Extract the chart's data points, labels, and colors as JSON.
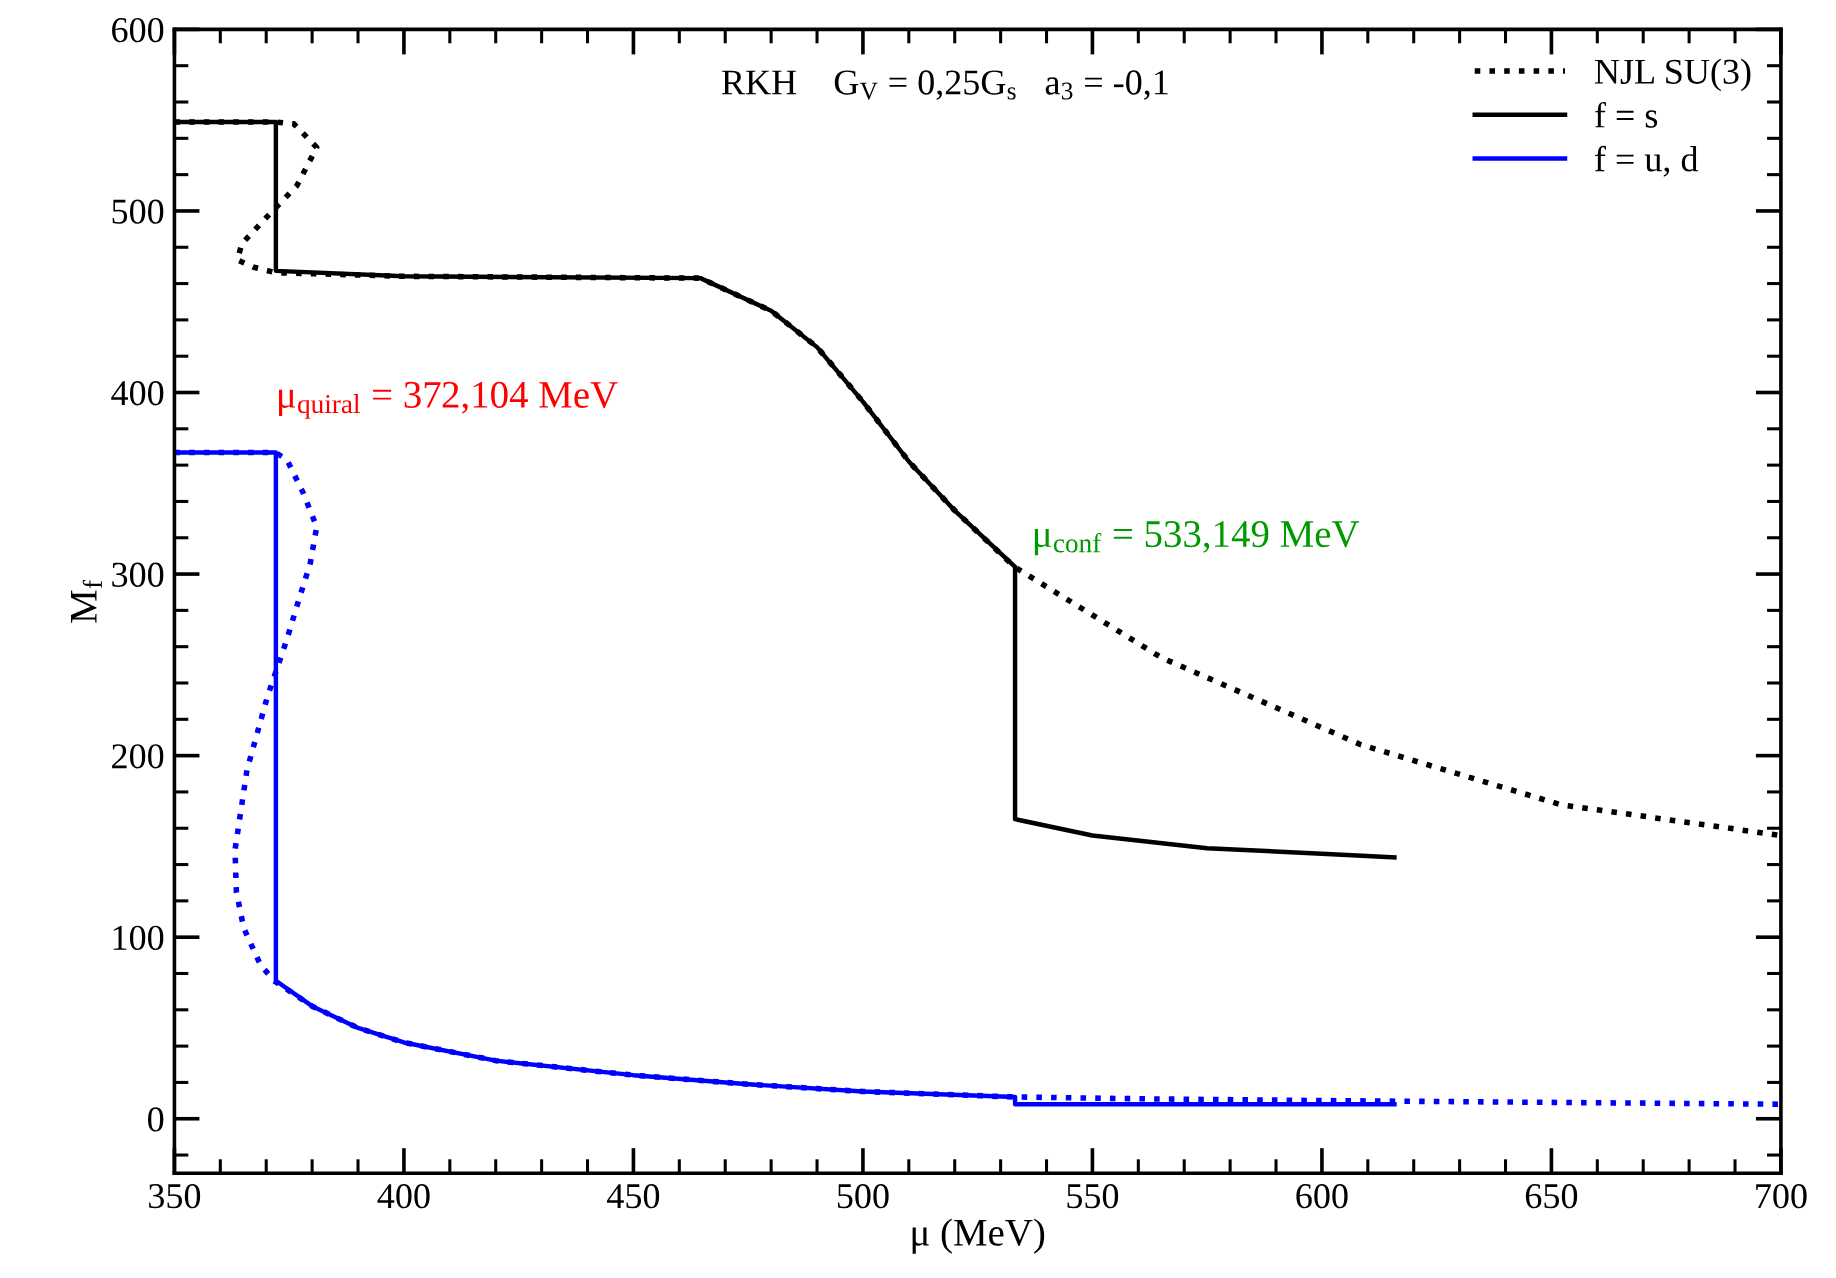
{
  "chart_data": {
    "type": "line",
    "title": "RKH    G$_{V}$ = 0,25G$_{s}$   a$_{3}$ = -0,1",
    "xlabel": "μ (MeV)",
    "ylabel": "M$_{f}$",
    "xlim": [
      350,
      700
    ],
    "ylim": [
      -30,
      600
    ],
    "xticks": [
      350,
      400,
      450,
      500,
      550,
      600,
      650,
      700
    ],
    "yticks": [
      0,
      100,
      200,
      300,
      400,
      500,
      600
    ],
    "grid": false,
    "legend": "top right",
    "marker": "none",
    "annotations": [
      {
        "text": "μ$_{quiral}$ = 372,104 MeV",
        "x": 372.104,
        "y": 367
      },
      {
        "text": "μ$_{conf}$ = 533,149 MeV",
        "x": 533.149,
        "y": 304
      }
    ],
    "series": [
      {
        "color": "#0000ff",
        "line_style": "dotted",
        "x": [
          350,
          372,
          374.5,
          378,
          381,
          379.6,
          377,
          374.5,
          370.2,
          365.8,
          363.2,
          363.5,
          365.1,
          368.7,
          371.7,
          380,
          390,
          400,
          420,
          450,
          475,
          500,
          533,
          560,
          600,
          650,
          700
        ],
        "values": [
          367,
          367,
          363,
          345,
          326,
          306,
          285,
          264,
          232,
          192,
          148,
          125,
          105,
          85,
          76,
          62,
          50,
          42,
          32,
          24,
          19,
          15,
          12,
          11,
          10,
          9,
          8
        ]
      },
      {
        "name": "NJL SU(3)",
        "color": "#000000",
        "line_style": "dotted",
        "x": [
          350,
          372,
          376,
          381,
          376.7,
          371,
          364.7,
          363.7,
          367.3,
          372,
          400,
          464.6,
          480,
          490,
          500,
          510,
          520,
          533,
          565,
          608.5,
          652,
          700
        ],
        "values": [
          549,
          549,
          548,
          535,
          514,
          499,
          482,
          473,
          469,
          466,
          464,
          463,
          445,
          425,
          395,
          362,
          335,
          304,
          254,
          206,
          173,
          156
        ]
      },
      {
        "name": "f = s",
        "color": "#000000",
        "line_style": "solid",
        "x": [
          350,
          372.104,
          372.104,
          400,
          464.6,
          480,
          490,
          500,
          510,
          520,
          533.149,
          533.149,
          550,
          575,
          600,
          615.8
        ],
        "values": [
          549,
          549,
          467,
          464,
          463,
          445,
          425,
          395,
          362,
          335,
          304,
          165,
          156,
          149,
          146,
          144
        ]
      },
      {
        "name": "f = u, d",
        "color": "#0000ff",
        "line_style": "solid",
        "x": [
          350,
          372.104,
          372.104,
          380,
          390,
          400,
          420,
          450,
          475,
          500,
          533.149,
          533.149,
          615.8
        ],
        "values": [
          367,
          367,
          76,
          62,
          50,
          42,
          32,
          24,
          19,
          15,
          12,
          8,
          8
        ]
      }
    ]
  }
}
